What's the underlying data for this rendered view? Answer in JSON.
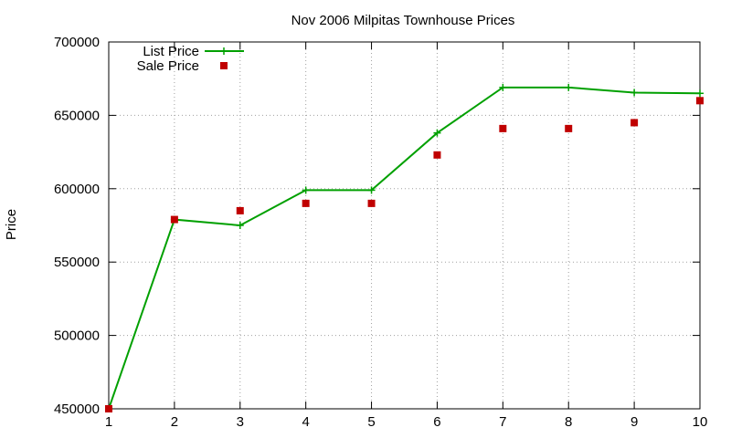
{
  "chart_data": {
    "type": "line",
    "title": "Nov 2006 Milpitas Townhouse Prices",
    "xlabel": "",
    "ylabel": "Price",
    "x": [
      1,
      2,
      3,
      4,
      5,
      6,
      7,
      8,
      9,
      10
    ],
    "xlim": [
      1,
      10
    ],
    "ylim": [
      450000,
      700000
    ],
    "xticks": [
      1,
      2,
      3,
      4,
      5,
      6,
      7,
      8,
      9,
      10
    ],
    "yticks": [
      450000,
      500000,
      550000,
      600000,
      650000,
      700000
    ],
    "grid": true,
    "legend_position": "top-left",
    "series": [
      {
        "name": "List Price",
        "style": "line-with-plus-markers",
        "color": "#00a000",
        "values": [
          450000,
          579000,
          575000,
          599000,
          599000,
          638000,
          669000,
          669000,
          665500,
          665000
        ]
      },
      {
        "name": "Sale Price",
        "style": "square-points",
        "color": "#c00000",
        "values": [
          450000,
          579000,
          585000,
          590000,
          590000,
          623000,
          641000,
          641000,
          645000,
          660000
        ]
      }
    ]
  }
}
